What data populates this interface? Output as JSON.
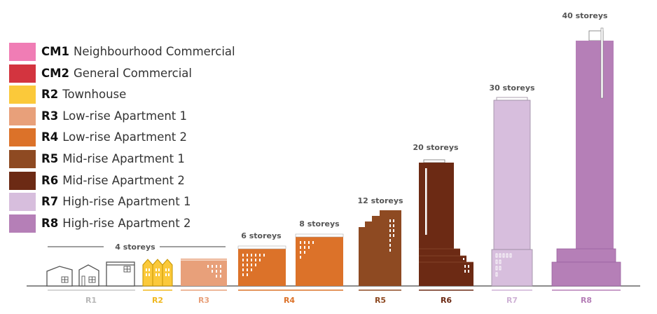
{
  "legend": {
    "items": [
      {
        "code": "CM1",
        "label": "Neighbourhood Commercial",
        "color": "#f07db5"
      },
      {
        "code": "CM2",
        "label": "General Commercial",
        "color": "#d3343f"
      },
      {
        "code": "R2",
        "label": "Townhouse",
        "color": "#fbc93a"
      },
      {
        "code": "R3",
        "label": "Low-rise Apartment 1",
        "color": "#e8a07a"
      },
      {
        "code": "R4",
        "label": "Low-rise Apartment 2",
        "color": "#dc7229"
      },
      {
        "code": "R5",
        "label": "Mid-rise Apartment 1",
        "color": "#8e4a22"
      },
      {
        "code": "R6",
        "label": "Mid-rise Apartment 2",
        "color": "#6c2a14"
      },
      {
        "code": "R7",
        "label": "High-rise Apartment 1",
        "color": "#d7bedd"
      },
      {
        "code": "R8",
        "label": "High-rise Apartment 2",
        "color": "#b57fb7"
      }
    ]
  },
  "heights": {
    "four": "4 storeys",
    "six": "6 storeys",
    "eight": "8 storeys",
    "twelve": "12 storeys",
    "twenty": "20 storeys",
    "thirty": "30 storeys",
    "forty": "40 storeys"
  },
  "zones": {
    "r1": {
      "label": "R1",
      "color": "#c8c8c8"
    },
    "r2": {
      "label": "R2",
      "color": "#f0b81e"
    },
    "r3": {
      "label": "R3",
      "color": "#e8a07a"
    },
    "r4": {
      "label": "R4",
      "color": "#dc7229"
    },
    "r5": {
      "label": "R5",
      "color": "#8e4a22"
    },
    "r6": {
      "label": "R6",
      "color": "#6c2a14"
    },
    "r7": {
      "label": "R7",
      "color": "#cfb2d6"
    },
    "r8": {
      "label": "R8",
      "color": "#b57fb7"
    }
  }
}
